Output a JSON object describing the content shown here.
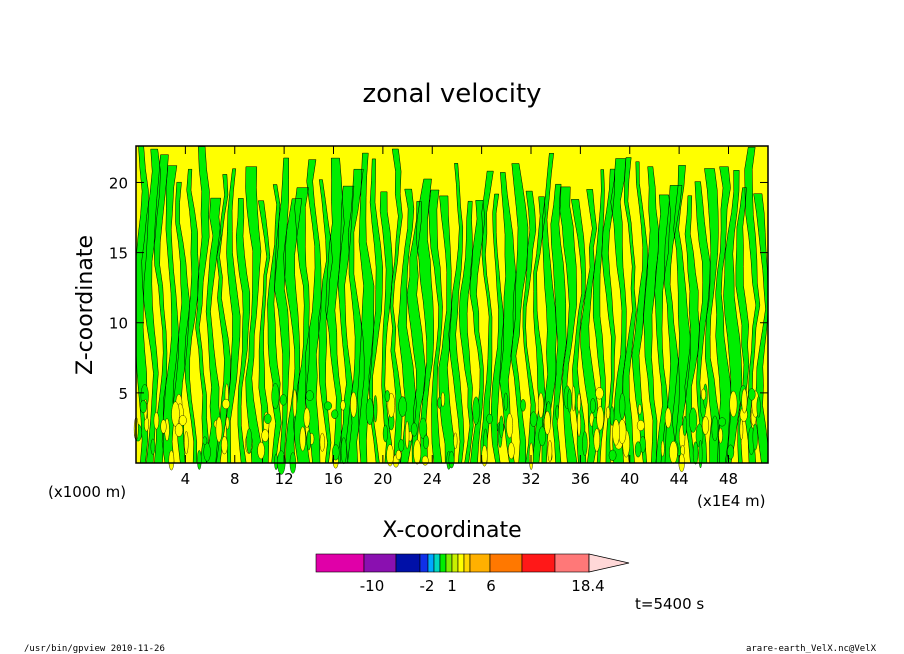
{
  "chart_data": {
    "type": "heatmap",
    "title": "zonal velocity",
    "xlabel": "X-coordinate",
    "ylabel": "Z-coordinate",
    "x_unit": "(x1E4 m)",
    "y_unit": "(x1000 m)",
    "xlim": [
      0,
      51.2
    ],
    "ylim": [
      0,
      22.6
    ],
    "x_ticks": [
      "4",
      "8",
      "12",
      "16",
      "20",
      "24",
      "28",
      "32",
      "36",
      "40",
      "44",
      "48"
    ],
    "x_tick_values": [
      4,
      8,
      12,
      16,
      20,
      24,
      28,
      32,
      36,
      40,
      44,
      48
    ],
    "y_ticks": [
      "5",
      "10",
      "15",
      "20"
    ],
    "y_tick_values": [
      5,
      10,
      15,
      20
    ],
    "field_colors": {
      "positive": "#ffff00",
      "negative": "#00ee00"
    },
    "colorbar": {
      "labels": [
        "-10",
        "-2",
        "1",
        "6",
        "18.4"
      ],
      "label_values": [
        -10,
        -2,
        1,
        6,
        18.4
      ],
      "colors": [
        "#e000a8",
        "#8a10b0",
        "#0010a8",
        "#1030e8",
        "#00a8ff",
        "#00d8c0",
        "#00ee00",
        "#80ee00",
        "#c8f000",
        "#ffff00",
        "#ffd800",
        "#ffb000",
        "#ff7800",
        "#ff1818",
        "#ff7878",
        "#ffb8b8",
        "#ffd8d8"
      ]
    },
    "annotation": "t=5400 s",
    "grid": false,
    "legend": "colorbar-bottom"
  },
  "footer": {
    "left": "/usr/bin/gpview   2010-11-26",
    "right": "arare-earth_VelX.nc@VelX"
  }
}
